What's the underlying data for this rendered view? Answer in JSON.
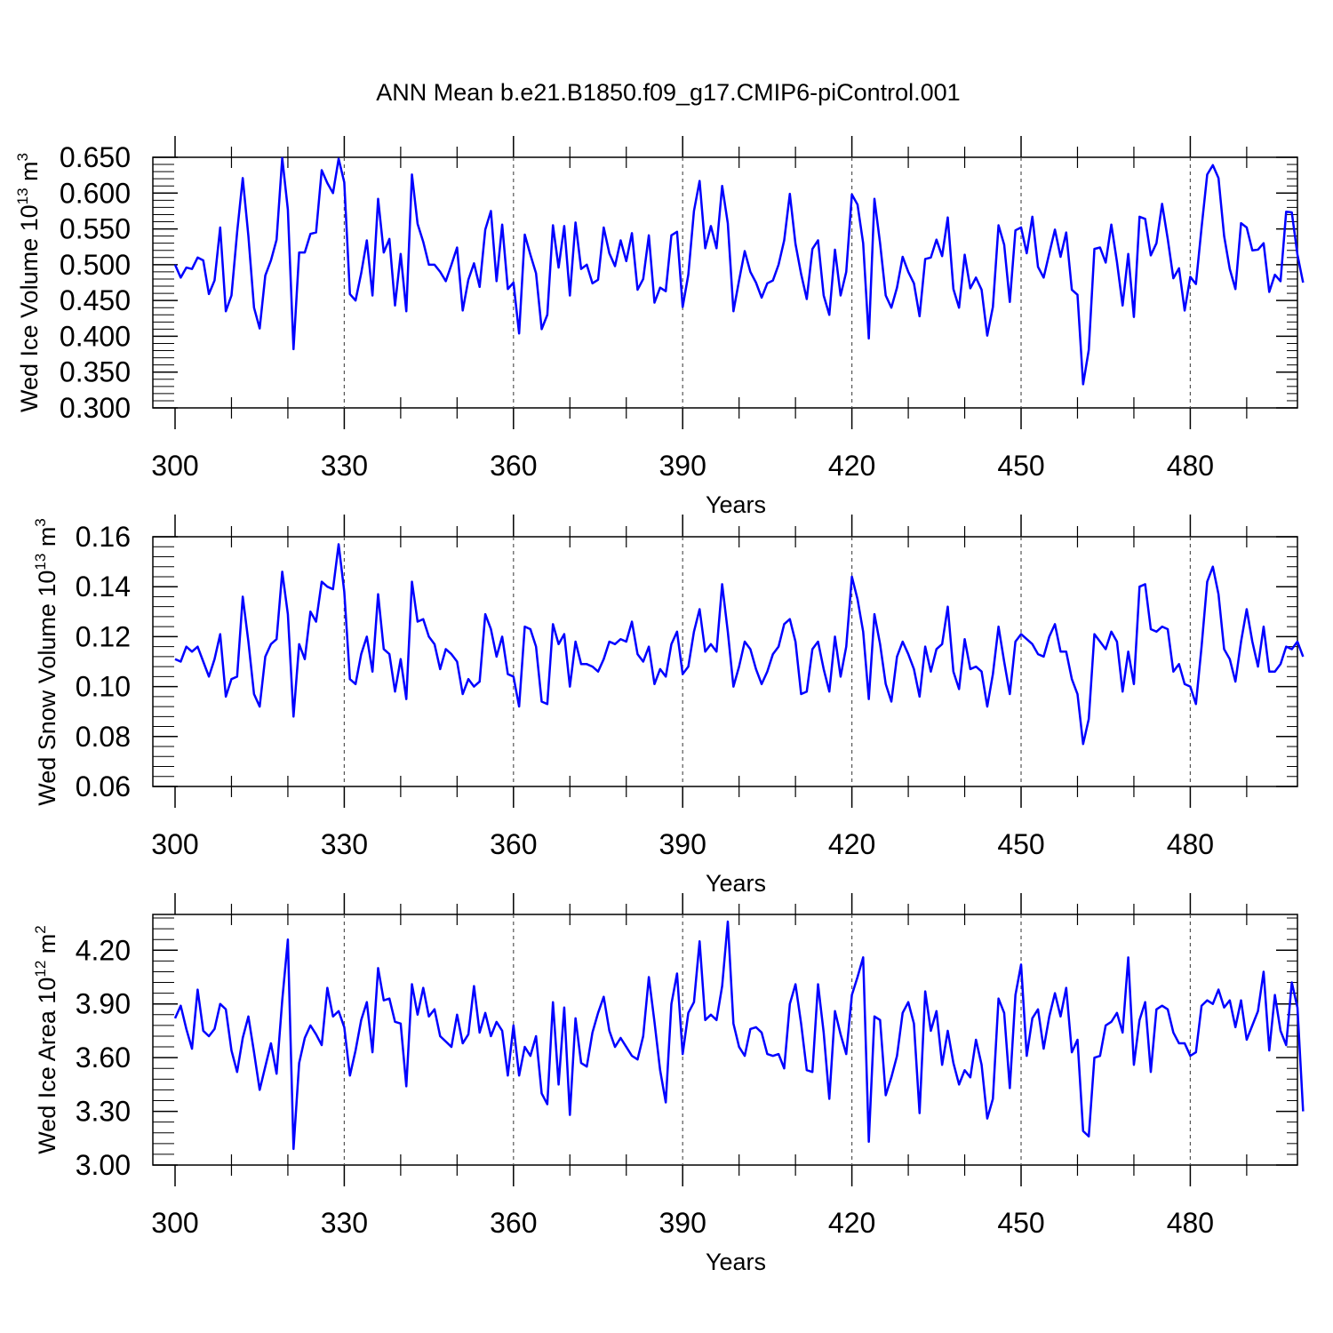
{
  "title": "ANN Mean b.e21.B1850.f09_g17.CMIP6-piControl.001",
  "colors": {
    "line": "#0000ff",
    "axis": "#000000",
    "grid": "#555555"
  },
  "chart_data": [
    {
      "type": "line",
      "ylabel_main": "Wed Ice Volume 10",
      "ylabel_exp": "13",
      "ylabel_unit": " m",
      "ylabel_unit_exp": "3",
      "xlabel": "Years",
      "xlim": [
        300,
        499
      ],
      "ylim": [
        0.3,
        0.65
      ],
      "xticks": [
        "300",
        "330",
        "360",
        "390",
        "420",
        "450",
        "480"
      ],
      "yticks": [
        "0.300",
        "0.350",
        "0.400",
        "0.450",
        "0.500",
        "0.550",
        "0.600",
        "0.650"
      ],
      "x_start": 300,
      "values": [
        0.5,
        0.482,
        0.496,
        0.494,
        0.51,
        0.506,
        0.459,
        0.478,
        0.552,
        0.435,
        0.457,
        0.545,
        0.621,
        0.54,
        0.44,
        0.411,
        0.485,
        0.506,
        0.535,
        0.649,
        0.577,
        0.382,
        0.517,
        0.517,
        0.543,
        0.545,
        0.632,
        0.614,
        0.6,
        0.648,
        0.615,
        0.459,
        0.45,
        0.488,
        0.534,
        0.457,
        0.592,
        0.517,
        0.536,
        0.443,
        0.515,
        0.435,
        0.626,
        0.557,
        0.532,
        0.5,
        0.5,
        0.49,
        0.477,
        0.5,
        0.524,
        0.436,
        0.479,
        0.502,
        0.469,
        0.549,
        0.575,
        0.477,
        0.556,
        0.466,
        0.475,
        0.404,
        0.542,
        0.514,
        0.488,
        0.41,
        0.43,
        0.555,
        0.496,
        0.554,
        0.457,
        0.559,
        0.494,
        0.5,
        0.474,
        0.479,
        0.552,
        0.516,
        0.498,
        0.534,
        0.505,
        0.544,
        0.465,
        0.48,
        0.541,
        0.447,
        0.468,
        0.463,
        0.541,
        0.546,
        0.441,
        0.486,
        0.575,
        0.617,
        0.523,
        0.554,
        0.523,
        0.61,
        0.558,
        0.435,
        0.478,
        0.519,
        0.49,
        0.475,
        0.454,
        0.474,
        0.478,
        0.5,
        0.534,
        0.599,
        0.529,
        0.487,
        0.452,
        0.522,
        0.534,
        0.457,
        0.43,
        0.521,
        0.457,
        0.49,
        0.598,
        0.584,
        0.53,
        0.397,
        0.592,
        0.53,
        0.457,
        0.44,
        0.468,
        0.511,
        0.49,
        0.474,
        0.428,
        0.508,
        0.51,
        0.535,
        0.512,
        0.566,
        0.466,
        0.44,
        0.514,
        0.467,
        0.482,
        0.465,
        0.401,
        0.441,
        0.555,
        0.528,
        0.448,
        0.548,
        0.552,
        0.516,
        0.567,
        0.497,
        0.482,
        0.516,
        0.549,
        0.511,
        0.545,
        0.465,
        0.458,
        0.333,
        0.381,
        0.522,
        0.524,
        0.503,
        0.556,
        0.504,
        0.443,
        0.515,
        0.427,
        0.567,
        0.564,
        0.513,
        0.53,
        0.585,
        0.536,
        0.481,
        0.495,
        0.436,
        0.483,
        0.473,
        0.552,
        0.626,
        0.639,
        0.621,
        0.54,
        0.494,
        0.466,
        0.558,
        0.552,
        0.52,
        0.521,
        0.53,
        0.462,
        0.486,
        0.477,
        0.574,
        0.573,
        0.514,
        0.475
      ]
    },
    {
      "type": "line",
      "ylabel_main": "Wed Snow Volume 10",
      "ylabel_exp": "13",
      "ylabel_unit": " m",
      "ylabel_unit_exp": "3",
      "xlabel": "Years",
      "xlim": [
        300,
        499
      ],
      "ylim": [
        0.06,
        0.16
      ],
      "xticks": [
        "300",
        "330",
        "360",
        "390",
        "420",
        "450",
        "480"
      ],
      "yticks": [
        "0.06",
        "0.08",
        "0.10",
        "0.12",
        "0.14",
        "0.16"
      ],
      "x_start": 300,
      "values": [
        0.111,
        0.11,
        0.116,
        0.114,
        0.116,
        0.11,
        0.104,
        0.111,
        0.121,
        0.096,
        0.103,
        0.104,
        0.136,
        0.118,
        0.097,
        0.092,
        0.112,
        0.117,
        0.119,
        0.146,
        0.129,
        0.088,
        0.117,
        0.111,
        0.13,
        0.126,
        0.142,
        0.14,
        0.139,
        0.157,
        0.138,
        0.103,
        0.101,
        0.113,
        0.12,
        0.106,
        0.137,
        0.115,
        0.113,
        0.098,
        0.111,
        0.095,
        0.142,
        0.126,
        0.127,
        0.12,
        0.117,
        0.107,
        0.115,
        0.113,
        0.11,
        0.097,
        0.103,
        0.1,
        0.102,
        0.129,
        0.123,
        0.112,
        0.12,
        0.105,
        0.104,
        0.092,
        0.124,
        0.123,
        0.116,
        0.094,
        0.093,
        0.125,
        0.117,
        0.121,
        0.1,
        0.118,
        0.109,
        0.109,
        0.108,
        0.106,
        0.111,
        0.118,
        0.117,
        0.119,
        0.118,
        0.126,
        0.113,
        0.11,
        0.116,
        0.101,
        0.107,
        0.104,
        0.117,
        0.122,
        0.105,
        0.108,
        0.122,
        0.131,
        0.114,
        0.117,
        0.114,
        0.141,
        0.122,
        0.1,
        0.108,
        0.118,
        0.115,
        0.107,
        0.101,
        0.106,
        0.113,
        0.116,
        0.125,
        0.127,
        0.118,
        0.097,
        0.098,
        0.115,
        0.118,
        0.107,
        0.098,
        0.12,
        0.104,
        0.116,
        0.144,
        0.135,
        0.122,
        0.095,
        0.129,
        0.117,
        0.101,
        0.094,
        0.112,
        0.118,
        0.113,
        0.107,
        0.096,
        0.116,
        0.106,
        0.115,
        0.117,
        0.132,
        0.106,
        0.099,
        0.119,
        0.107,
        0.108,
        0.106,
        0.092,
        0.105,
        0.124,
        0.11,
        0.097,
        0.118,
        0.121,
        0.119,
        0.117,
        0.113,
        0.112,
        0.12,
        0.125,
        0.114,
        0.114,
        0.103,
        0.097,
        0.077,
        0.087,
        0.121,
        0.118,
        0.115,
        0.122,
        0.118,
        0.098,
        0.114,
        0.101,
        0.14,
        0.141,
        0.123,
        0.122,
        0.124,
        0.123,
        0.106,
        0.109,
        0.101,
        0.1,
        0.093,
        0.116,
        0.142,
        0.148,
        0.137,
        0.115,
        0.111,
        0.102,
        0.118,
        0.131,
        0.118,
        0.108,
        0.124,
        0.106,
        0.106,
        0.109,
        0.116,
        0.115,
        0.118,
        0.112
      ]
    },
    {
      "type": "line",
      "ylabel_main": "Wed Ice Area 10",
      "ylabel_exp": "12",
      "ylabel_unit": " m",
      "ylabel_unit_exp": "2",
      "xlabel": "Years",
      "xlim": [
        300,
        499
      ],
      "ylim": [
        3.0,
        4.4
      ],
      "xticks": [
        "300",
        "330",
        "360",
        "390",
        "420",
        "450",
        "480"
      ],
      "yticks": [
        "3.00",
        "3.30",
        "3.60",
        "3.90",
        "4.20"
      ],
      "x_start": 300,
      "values": [
        3.82,
        3.89,
        3.76,
        3.65,
        3.98,
        3.75,
        3.72,
        3.76,
        3.9,
        3.87,
        3.64,
        3.52,
        3.71,
        3.83,
        3.63,
        3.42,
        3.55,
        3.68,
        3.51,
        3.92,
        4.26,
        3.09,
        3.57,
        3.71,
        3.78,
        3.73,
        3.67,
        3.99,
        3.83,
        3.86,
        3.77,
        3.5,
        3.64,
        3.81,
        3.91,
        3.63,
        4.1,
        3.92,
        3.93,
        3.8,
        3.79,
        3.44,
        4.01,
        3.84,
        3.99,
        3.83,
        3.87,
        3.72,
        3.69,
        3.66,
        3.84,
        3.68,
        3.73,
        4.0,
        3.74,
        3.85,
        3.72,
        3.8,
        3.75,
        3.5,
        3.78,
        3.5,
        3.66,
        3.61,
        3.72,
        3.4,
        3.34,
        3.91,
        3.45,
        3.88,
        3.28,
        3.82,
        3.57,
        3.55,
        3.74,
        3.85,
        3.94,
        3.75,
        3.66,
        3.71,
        3.66,
        3.61,
        3.59,
        3.72,
        4.05,
        3.8,
        3.53,
        3.35,
        3.9,
        4.07,
        3.62,
        3.85,
        3.91,
        4.25,
        3.81,
        3.84,
        3.81,
        4.0,
        4.36,
        3.79,
        3.66,
        3.61,
        3.76,
        3.77,
        3.74,
        3.62,
        3.61,
        3.62,
        3.54,
        3.9,
        4.01,
        3.79,
        3.53,
        3.52,
        4.01,
        3.74,
        3.37,
        3.86,
        3.73,
        3.62,
        3.95,
        4.05,
        4.16,
        3.13,
        3.83,
        3.81,
        3.39,
        3.49,
        3.61,
        3.85,
        3.91,
        3.79,
        3.29,
        3.97,
        3.75,
        3.86,
        3.56,
        3.75,
        3.57,
        3.45,
        3.53,
        3.49,
        3.7,
        3.56,
        3.26,
        3.37,
        3.93,
        3.85,
        3.43,
        3.95,
        4.12,
        3.61,
        3.82,
        3.87,
        3.65,
        3.83,
        3.96,
        3.83,
        3.99,
        3.63,
        3.7,
        3.19,
        3.16,
        3.6,
        3.61,
        3.78,
        3.8,
        3.85,
        3.74,
        4.16,
        3.56,
        3.81,
        3.91,
        3.52,
        3.87,
        3.89,
        3.87,
        3.74,
        3.68,
        3.68,
        3.61,
        3.63,
        3.89,
        3.92,
        3.9,
        3.98,
        3.88,
        3.92,
        3.77,
        3.92,
        3.7,
        3.78,
        3.86,
        4.08,
        3.64,
        3.95,
        3.75,
        3.67,
        4.02,
        3.88,
        3.3
      ]
    }
  ]
}
